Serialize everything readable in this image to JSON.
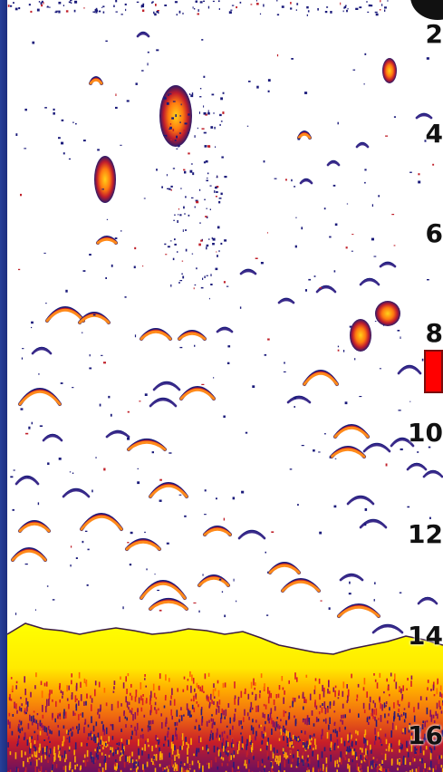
{
  "depth_scale": {
    "labels": [
      "2",
      "4",
      "6",
      "8",
      "10",
      "12",
      "14",
      "16"
    ]
  },
  "depth_cursor": {
    "color": "#ff0000"
  },
  "palette": {
    "background": "#ffffff",
    "frame": "#1a2a78",
    "bottom_surface": "#ffff00",
    "weak_return": "#1a1a7a",
    "medium_return": "#c0202a",
    "strong_return": "#ff8a1a"
  }
}
